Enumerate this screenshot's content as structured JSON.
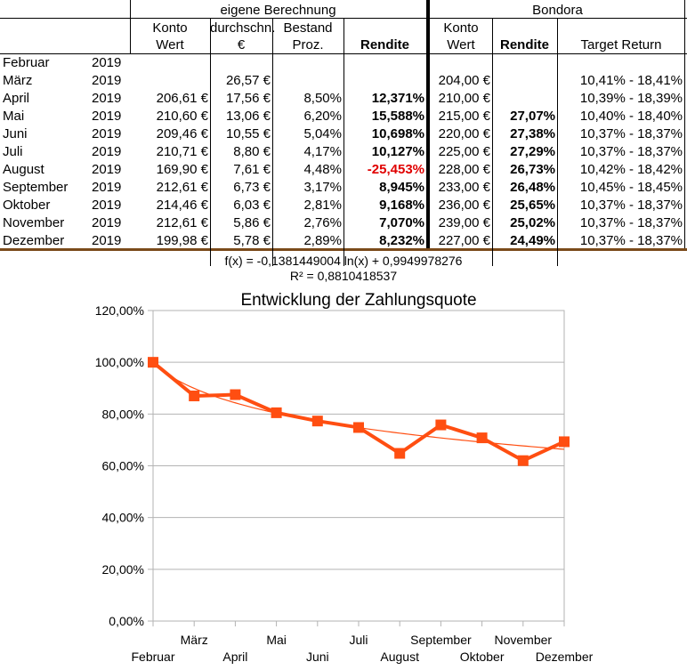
{
  "table": {
    "group_left": "eigene Berechnung",
    "group_right": "Bondora",
    "columns": {
      "konto_wert_1": "Konto",
      "konto_wert_2": "Wert",
      "durchschn_1": "durchschn.",
      "durchschn_2": "€",
      "bestand_1": "Bestand",
      "bestand_2": "Proz.",
      "rendite": "Rendite",
      "b_konto_1": "Konto",
      "b_konto_2": "Wert",
      "b_rendite": "Rendite",
      "target": "Target Return"
    },
    "rows": [
      {
        "month": "Februar",
        "year": "2019",
        "konto": "",
        "durchschn": "",
        "bestand": "",
        "rendite": "",
        "b_konto": "",
        "b_rendite": "",
        "target": ""
      },
      {
        "month": "März",
        "year": "2019",
        "konto": "",
        "durchschn": "26,57 €",
        "bestand": "",
        "rendite": "",
        "b_konto": "204,00 €",
        "b_rendite": "",
        "target": "10,41%  -  18,41%"
      },
      {
        "month": "April",
        "year": "2019",
        "konto": "206,61 €",
        "durchschn": "17,56 €",
        "bestand": "8,50%",
        "rendite": "12,371%",
        "b_konto": "210,00 €",
        "b_rendite": "",
        "target": "10,39%  -  18,39%"
      },
      {
        "month": "Mai",
        "year": "2019",
        "konto": "210,60 €",
        "durchschn": "13,06 €",
        "bestand": "6,20%",
        "rendite": "15,588%",
        "b_konto": "215,00 €",
        "b_rendite": "27,07%",
        "target": "10,40%  -  18,40%"
      },
      {
        "month": "Juni",
        "year": "2019",
        "konto": "209,46 €",
        "durchschn": "10,55 €",
        "bestand": "5,04%",
        "rendite": "10,698%",
        "b_konto": "220,00 €",
        "b_rendite": "27,38%",
        "target": "10,37%  -  18,37%"
      },
      {
        "month": "Juli",
        "year": "2019",
        "konto": "210,71 €",
        "durchschn": "8,80 €",
        "bestand": "4,17%",
        "rendite": "10,127%",
        "b_konto": "225,00 €",
        "b_rendite": "27,29%",
        "target": "10,37%  -  18,37%"
      },
      {
        "month": "August",
        "year": "2019",
        "konto": "169,90 €",
        "durchschn": "7,61 €",
        "bestand": "4,48%",
        "rendite": "-25,453%",
        "b_konto": "228,00 €",
        "b_rendite": "26,73%",
        "target": "10,42%  -  18,42%"
      },
      {
        "month": "September",
        "year": "2019",
        "konto": "212,61 €",
        "durchschn": "6,73 €",
        "bestand": "3,17%",
        "rendite": "8,945%",
        "b_konto": "233,00 €",
        "b_rendite": "26,48%",
        "target": "10,45%  -  18,45%"
      },
      {
        "month": "Oktober",
        "year": "2019",
        "konto": "214,46 €",
        "durchschn": "6,03 €",
        "bestand": "2,81%",
        "rendite": "9,168%",
        "b_konto": "236,00 €",
        "b_rendite": "25,65%",
        "target": "10,37%  -  18,37%"
      },
      {
        "month": "November",
        "year": "2019",
        "konto": "212,61 €",
        "durchschn": "5,86 €",
        "bestand": "2,76%",
        "rendite": "7,070%",
        "b_konto": "239,00 €",
        "b_rendite": "25,02%",
        "target": "10,37%  -  18,37%"
      },
      {
        "month": "Dezember",
        "year": "2019",
        "konto": "199,98 €",
        "durchschn": "5,78 €",
        "bestand": "2,89%",
        "rendite": "8,232%",
        "b_konto": "227,00 €",
        "b_rendite": "24,49%",
        "target": "10,37%  -  18,37%"
      }
    ],
    "negative_color": "#e00000"
  },
  "formula": {
    "line1": "f(x) = -0,1381449004 ln(x) + 0,9949978276",
    "line2": "R² = 0,8810418537"
  },
  "chart_data": {
    "type": "line",
    "title": "Entwicklung der Zahlungsquote",
    "xlabel": "",
    "ylabel": "",
    "categories": [
      "Februar",
      "März",
      "April",
      "Mai",
      "Juni",
      "Juli",
      "August",
      "September",
      "Oktober",
      "November",
      "Dezember"
    ],
    "series": [
      {
        "values": [
          1.0,
          0.87,
          0.875,
          0.805,
          0.773,
          0.748,
          0.648,
          0.758,
          0.708,
          0.62,
          0.693
        ],
        "color": "#ff4e11"
      }
    ],
    "trendline": {
      "type": "logarithmic",
      "a": -0.1381449004,
      "b": 0.9949978276,
      "color": "#ff4e11"
    },
    "ylim": [
      0,
      1.2
    ],
    "yticks": [
      "0,00%",
      "20,00%",
      "40,00%",
      "60,00%",
      "80,00%",
      "100,00%",
      "120,00%"
    ],
    "grid": true,
    "legend": "none"
  }
}
